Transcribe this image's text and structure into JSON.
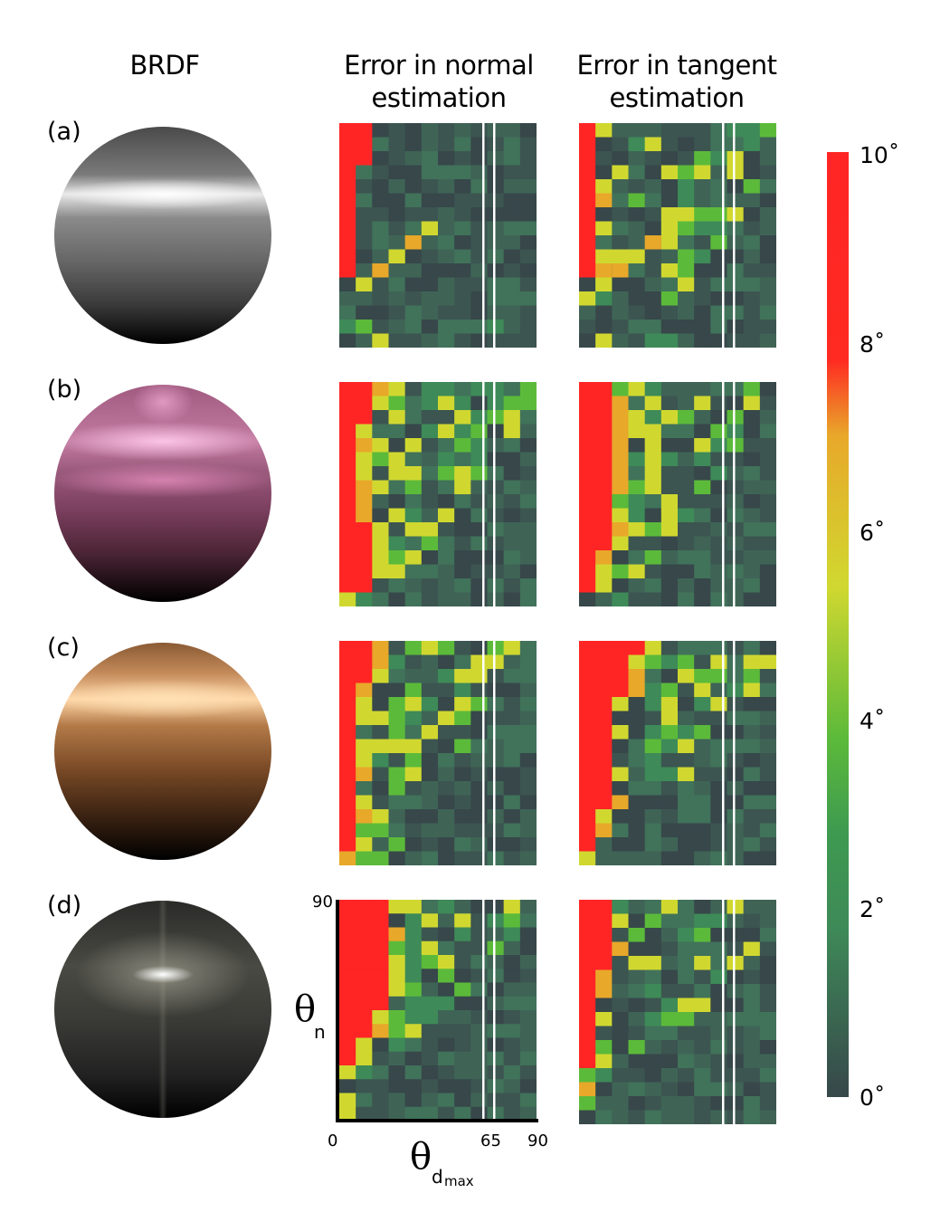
{
  "headers": {
    "brdf": "BRDF",
    "normal": [
      "Error in normal",
      "estimation"
    ],
    "tangent": [
      "Error in tangent",
      "estimation"
    ]
  },
  "rows": [
    {
      "label": "(a)",
      "material": "grey-plastic",
      "colors": {
        "base": "#6a6a6a",
        "highlight": "#ffffff"
      }
    },
    {
      "label": "(b)",
      "material": "pink-metallic",
      "colors": {
        "base": "#7a3e5e",
        "highlight": "#ffc8e8"
      }
    },
    {
      "label": "(c)",
      "material": "copper",
      "colors": {
        "base": "#7a4a26",
        "highlight": "#ffe0b0"
      }
    },
    {
      "label": "(d)",
      "material": "dark-anisotropic",
      "colors": {
        "base": "#3a3a36",
        "highlight": "#ffffff"
      }
    }
  ],
  "axes": {
    "y_label": "θ",
    "y_sub": "n",
    "y_max": "90",
    "x_label": "θ",
    "x_sub": "d",
    "x_subsub": "max",
    "x_min": "0",
    "x_mark": "65",
    "x_max": "90"
  },
  "colorbar": {
    "ticks": [
      "10˚",
      "8˚",
      "6˚",
      "4˚",
      "2˚",
      "0˚"
    ],
    "colors": [
      "#ff2525",
      "#e8a82a",
      "#d0d830",
      "#5cba3a",
      "#3e8a58",
      "#37474a"
    ]
  },
  "chart_data": {
    "type": "heatmap",
    "x_axis": "θd max",
    "y_axis": "θn",
    "x_range": [
      0,
      90
    ],
    "y_range": [
      0,
      90
    ],
    "value_range_deg": [
      0,
      10
    ],
    "marked_column_x": 65,
    "grid": "12 columns × 16 rows",
    "panels": [
      {
        "row": "(a)",
        "column": "Error in normal estimation"
      },
      {
        "row": "(a)",
        "column": "Error in tangent estimation"
      },
      {
        "row": "(b)",
        "column": "Error in normal estimation"
      },
      {
        "row": "(b)",
        "column": "Error in tangent estimation"
      },
      {
        "row": "(c)",
        "column": "Error in normal estimation"
      },
      {
        "row": "(c)",
        "column": "Error in tangent estimation"
      },
      {
        "row": "(d)",
        "column": "Error in normal estimation"
      },
      {
        "row": "(d)",
        "column": "Error in tangent estimation"
      }
    ]
  }
}
